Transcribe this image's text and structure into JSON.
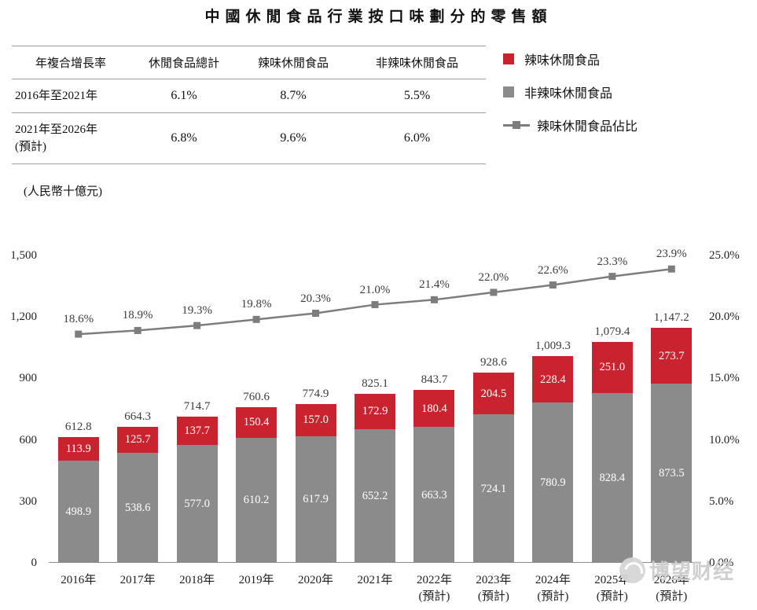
{
  "title": "中國休閒食品行業按口味劃分的零售額",
  "table": {
    "headers": [
      "年複合增長率",
      "休閒食品總計",
      "辣味休閒食品",
      "非辣味休閒食品"
    ],
    "rows": [
      {
        "cells": [
          "2016年至2021年",
          "6.1%",
          "8.7%",
          "5.5%"
        ]
      },
      {
        "cells": [
          "2021年至2026年\n(預計)",
          "6.8%",
          "9.6%",
          "6.0%"
        ]
      }
    ]
  },
  "legend": [
    {
      "label": "辣味休閒食品",
      "color": "#c8232e",
      "type": "square"
    },
    {
      "label": "非辣味休閒食品",
      "color": "#8b8b8b",
      "type": "square"
    },
    {
      "label": "辣味休閒食品佔比",
      "color": "#7d7d7d",
      "type": "line-marker"
    }
  ],
  "unit_label": "(人民幣十億元)",
  "watermark": "博望财经",
  "chart_data": {
    "type": "bar",
    "title": "中國休閒食品行業按口味劃分的零售額",
    "ylabel": "(人民幣十億元)",
    "categories": [
      [
        "2016年"
      ],
      [
        "2017年"
      ],
      [
        "2018年"
      ],
      [
        "2019年"
      ],
      [
        "2020年"
      ],
      [
        "2021年"
      ],
      [
        "2022年",
        "(預計)"
      ],
      [
        "2023年",
        "(預計)"
      ],
      [
        "2024年",
        "(預計)"
      ],
      [
        "2025年",
        "(預計)"
      ],
      [
        "2026年",
        "(預計)"
      ]
    ],
    "series": [
      {
        "name": "非辣味休閒食品",
        "color": "#8b8b8b",
        "values": [
          498.9,
          538.6,
          577.0,
          610.2,
          617.9,
          652.2,
          663.3,
          724.1,
          780.9,
          828.4,
          873.5
        ]
      },
      {
        "name": "辣味休閒食品",
        "color": "#c8232e",
        "values": [
          113.9,
          125.7,
          137.7,
          150.4,
          157.0,
          172.9,
          180.4,
          204.5,
          228.4,
          251.0,
          273.7
        ]
      }
    ],
    "totals": [
      612.8,
      664.3,
      714.7,
      760.6,
      774.9,
      825.1,
      843.7,
      928.6,
      1009.3,
      1079.4,
      1147.2
    ],
    "total_labels": [
      "612.8",
      "664.3",
      "714.7",
      "760.6",
      "774.9",
      "825.1",
      "843.7",
      "928.6",
      "1,009.3",
      "1,079.4",
      "1,147.2"
    ],
    "line_series": {
      "name": "辣味休閒食品佔比",
      "color": "#7d7d7d",
      "values_pct": [
        18.6,
        18.9,
        19.3,
        19.8,
        20.3,
        21.0,
        21.4,
        22.0,
        22.6,
        23.3,
        23.9
      ]
    },
    "left_axis": {
      "ticks": [
        "0",
        "300",
        "600",
        "900",
        "1,200",
        "1,500"
      ],
      "min": 0,
      "max": 1500
    },
    "right_axis": {
      "ticks": [
        "0.0%",
        "5.0%",
        "10.0%",
        "15.0%",
        "20.0%",
        "25.0%"
      ],
      "min": 0,
      "max": 25
    },
    "grid": false,
    "legend_position": "top-right"
  }
}
